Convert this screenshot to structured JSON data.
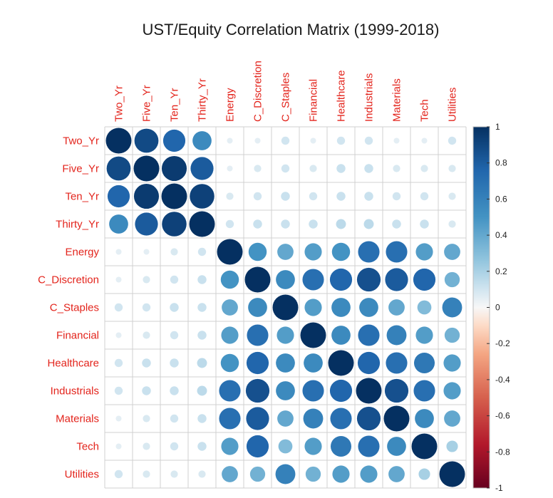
{
  "chart_data": {
    "type": "heatmap",
    "title": "UST/Equity Correlation Matrix (1999-2018)",
    "variables": [
      "Two_Yr",
      "Five_Yr",
      "Ten_Yr",
      "Thirty_Yr",
      "Energy",
      "C_Discretion",
      "C_Staples",
      "Financial",
      "Healthcare",
      "Industrials",
      "Materials",
      "Tech",
      "Utilities"
    ],
    "matrix": [
      [
        1.0,
        0.88,
        0.75,
        0.55,
        0.05,
        0.05,
        0.1,
        0.05,
        0.1,
        0.1,
        0.05,
        0.05,
        0.1
      ],
      [
        0.88,
        1.0,
        0.95,
        0.8,
        0.05,
        0.08,
        0.1,
        0.08,
        0.12,
        0.12,
        0.08,
        0.08,
        0.08
      ],
      [
        0.75,
        0.95,
        1.0,
        0.92,
        0.08,
        0.1,
        0.12,
        0.1,
        0.12,
        0.12,
        0.1,
        0.1,
        0.08
      ],
      [
        0.55,
        0.8,
        0.92,
        1.0,
        0.1,
        0.12,
        0.12,
        0.12,
        0.15,
        0.15,
        0.12,
        0.12,
        0.08
      ],
      [
        0.05,
        0.05,
        0.08,
        0.1,
        1.0,
        0.5,
        0.4,
        0.45,
        0.5,
        0.7,
        0.7,
        0.45,
        0.4
      ],
      [
        0.05,
        0.08,
        0.1,
        0.12,
        0.5,
        1.0,
        0.55,
        0.7,
        0.75,
        0.85,
        0.8,
        0.75,
        0.35
      ],
      [
        0.1,
        0.1,
        0.12,
        0.12,
        0.4,
        0.55,
        1.0,
        0.45,
        0.55,
        0.55,
        0.4,
        0.3,
        0.6
      ],
      [
        0.05,
        0.08,
        0.1,
        0.12,
        0.45,
        0.7,
        0.45,
        1.0,
        0.55,
        0.7,
        0.6,
        0.45,
        0.35
      ],
      [
        0.1,
        0.12,
        0.12,
        0.15,
        0.5,
        0.75,
        0.55,
        0.55,
        1.0,
        0.75,
        0.7,
        0.65,
        0.45
      ],
      [
        0.1,
        0.12,
        0.12,
        0.15,
        0.7,
        0.85,
        0.55,
        0.7,
        0.75,
        1.0,
        0.85,
        0.7,
        0.45
      ],
      [
        0.05,
        0.08,
        0.1,
        0.12,
        0.7,
        0.8,
        0.4,
        0.6,
        0.7,
        0.85,
        1.0,
        0.55,
        0.4
      ],
      [
        0.05,
        0.08,
        0.1,
        0.12,
        0.45,
        0.75,
        0.3,
        0.45,
        0.65,
        0.7,
        0.55,
        1.0,
        0.2
      ],
      [
        0.1,
        0.08,
        0.08,
        0.08,
        0.4,
        0.35,
        0.6,
        0.35,
        0.45,
        0.45,
        0.4,
        0.2,
        1.0
      ]
    ],
    "colorbar": {
      "ticks": [
        "1",
        "0.8",
        "0.6",
        "0.4",
        "0.2",
        "0",
        "-0.2",
        "-0.4",
        "-0.6",
        "-0.8",
        "-1"
      ],
      "range": [
        -1,
        1
      ],
      "high_color": "#053061",
      "mid_color": "#f7f7f7",
      "low_color": "#67001f"
    },
    "label_color": "#e3241c",
    "grid": true
  }
}
